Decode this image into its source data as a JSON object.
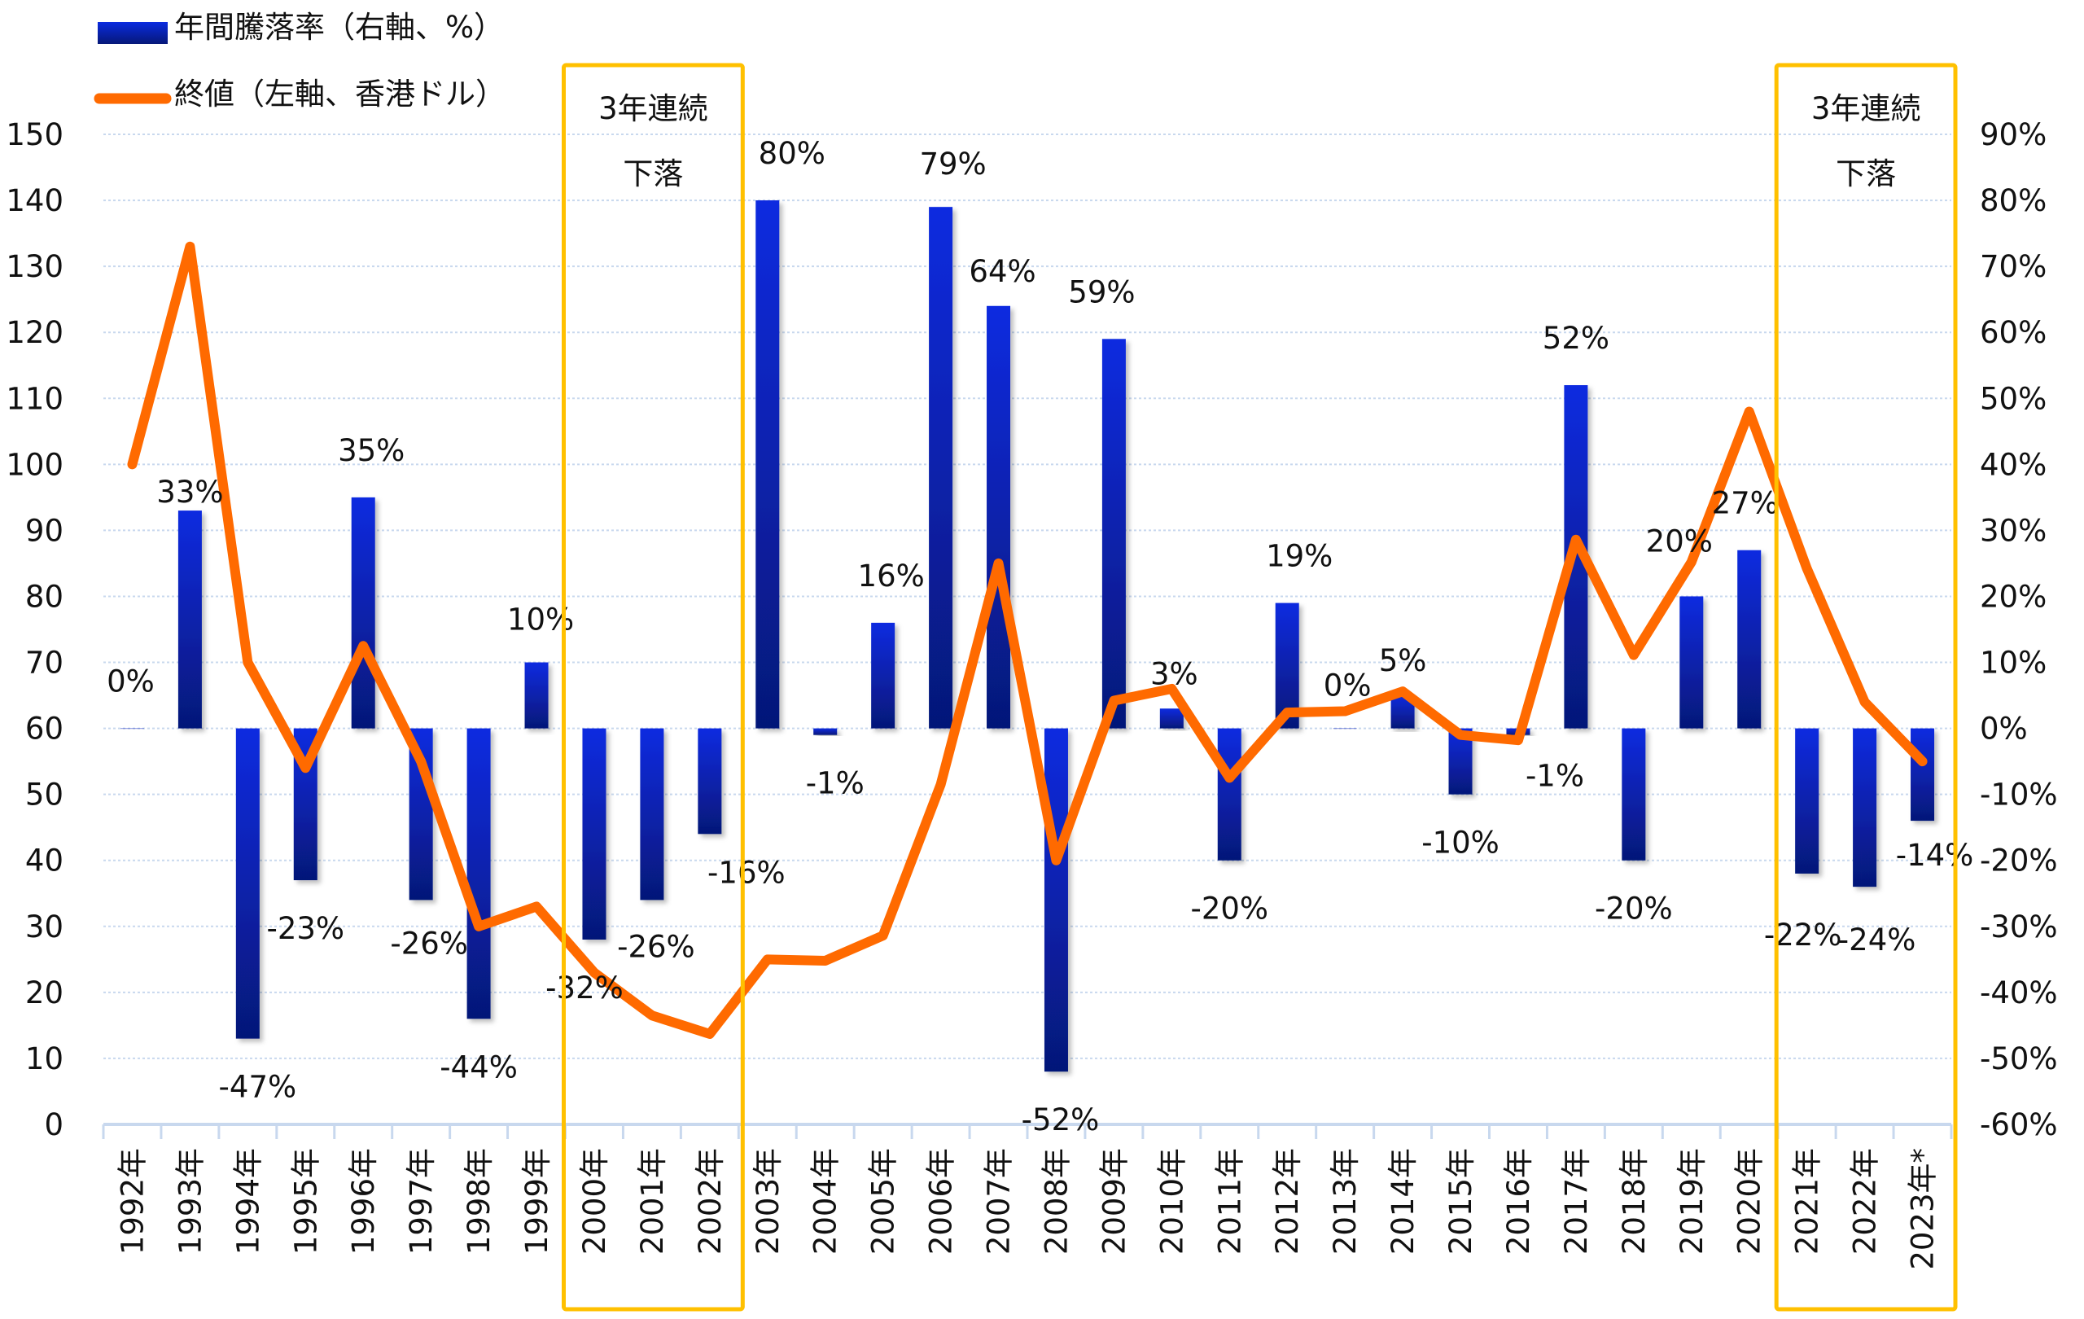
{
  "chart_data": {
    "type": "bar+line",
    "title": "",
    "categories": [
      "1992年",
      "1993年",
      "1994年",
      "1995年",
      "1996年",
      "1997年",
      "1998年",
      "1999年",
      "2000年",
      "2001年",
      "2002年",
      "2003年",
      "2004年",
      "2005年",
      "2006年",
      "2007年",
      "2008年",
      "2009年",
      "2010年",
      "2011年",
      "2012年",
      "2013年",
      "2014年",
      "2015年",
      "2016年",
      "2017年",
      "2018年",
      "2019年",
      "2020年",
      "2021年",
      "2022年",
      "2023年*"
    ],
    "series": [
      {
        "name": "年間騰落率（右軸、%）",
        "type": "bar",
        "axis": "right",
        "color": "#0a2bd6",
        "values": [
          0,
          33,
          -47,
          -23,
          35,
          -26,
          -44,
          10,
          -32,
          -26,
          -16,
          80,
          -1,
          16,
          79,
          64,
          -52,
          59,
          3,
          -20,
          19,
          0,
          5,
          -10,
          -1,
          52,
          -20,
          20,
          27,
          -22,
          -24,
          -14
        ],
        "labels": [
          "0%",
          "33%",
          "-47%",
          "-23%",
          "35%",
          "-26%",
          "-44%",
          "10%",
          "-32%",
          "-26%",
          "-16%",
          "80%",
          "-1%",
          "16%",
          "79%",
          "64%",
          "-52%",
          "59%",
          "3%",
          "-20%",
          "19%",
          "0%",
          "5%",
          "-10%",
          "-1%",
          "52%",
          "-20%",
          "20%",
          "27%",
          "-22%",
          "-24%",
          "-14%"
        ]
      },
      {
        "name": "終値（左軸、香港ドル）",
        "type": "line",
        "axis": "left",
        "color": "#ff6a00",
        "values": [
          100,
          133,
          70,
          54,
          72.5,
          55,
          30,
          33,
          23,
          16.5,
          13.7,
          25,
          24.8,
          28.6,
          51.5,
          85,
          40,
          64.2,
          66,
          52.5,
          62.4,
          62.6,
          65.6,
          59,
          58.2,
          88.6,
          71.1,
          85.2,
          108,
          84.2,
          64,
          55
        ]
      }
    ],
    "left_axis": {
      "label": "",
      "ylim": [
        0,
        150
      ],
      "ticks": [
        "0",
        "10",
        "20",
        "30",
        "40",
        "50",
        "60",
        "70",
        "80",
        "90",
        "100",
        "110",
        "120",
        "130",
        "140",
        "150"
      ]
    },
    "right_axis": {
      "label": "",
      "ylim": [
        -60,
        90
      ],
      "ticks": [
        "-60%",
        "-50%",
        "-40%",
        "-30%",
        "-20%",
        "-10%",
        "0%",
        "10%",
        "20%",
        "30%",
        "40%",
        "50%",
        "60%",
        "70%",
        "80%",
        "90%"
      ]
    },
    "legend": {
      "placement": "top-left",
      "entries": [
        {
          "label": "年間騰落率（右軸、%）",
          "color": "#0a2bd6",
          "shape": "bar"
        },
        {
          "label": "終値（左軸、香港ドル）",
          "color": "#ff6a00",
          "shape": "line"
        }
      ]
    },
    "annotations": [
      {
        "text_line1": "3年連続",
        "text_line2": "下落",
        "from": "2000年",
        "to": "2002年",
        "color": "#ffc000"
      },
      {
        "text_line1": "3年連続",
        "text_line2": "下落",
        "from": "2021年",
        "to": "2023年*",
        "color": "#ffc000"
      }
    ],
    "grid": true
  }
}
